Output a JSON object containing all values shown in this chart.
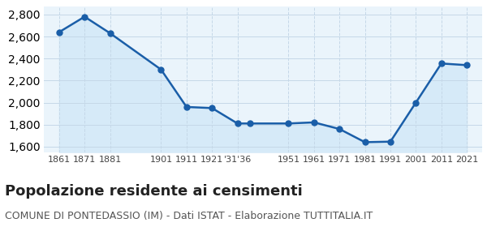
{
  "years": [
    1861,
    1871,
    1881,
    1901,
    1911,
    1921,
    1931,
    1936,
    1951,
    1961,
    1971,
    1981,
    1991,
    2001,
    2011,
    2021
  ],
  "values": [
    2640,
    2780,
    2630,
    2300,
    1960,
    1950,
    1810,
    1810,
    1810,
    1820,
    1760,
    1640,
    1645,
    2000,
    2355,
    2340
  ],
  "x_tick_years": [
    1861,
    1871,
    1881,
    1901,
    1911,
    1921,
    1931,
    1951,
    1961,
    1971,
    1981,
    1991,
    2001,
    2011,
    2021
  ],
  "x_tick_labels": [
    "1861",
    "1871",
    "1881",
    "1901",
    "1911",
    "1921",
    "'31'36",
    "1951",
    "1961",
    "1971",
    "1981",
    "1991",
    "2001",
    "2011",
    "2021"
  ],
  "ylim": [
    1550,
    2870
  ],
  "yticks": [
    1600,
    1800,
    2000,
    2200,
    2400,
    2600,
    2800
  ],
  "line_color": "#1a5ea8",
  "fill_color": "#d6eaf8",
  "marker_size": 5,
  "title": "Popolazione residente ai censimenti",
  "subtitle": "COMUNE DI PONTEDASSIO (IM) - Dati ISTAT - Elaborazione TUTTITALIA.IT",
  "title_fontsize": 13,
  "subtitle_fontsize": 9,
  "bg_color": "#eaf4fb",
  "grid_color": "#c5d8e8"
}
